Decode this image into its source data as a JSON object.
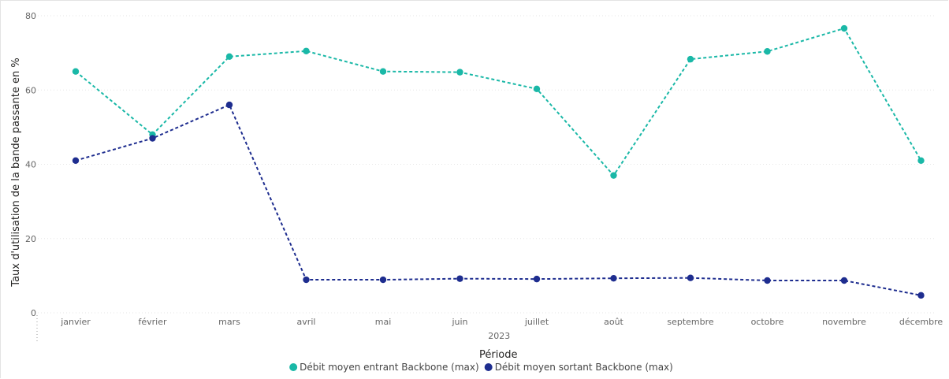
{
  "chart_data": {
    "type": "line",
    "categories": [
      "janvier",
      "février",
      "mars",
      "avril",
      "mai",
      "juin",
      "juillet",
      "août",
      "septembre",
      "octobre",
      "novembre",
      "décembre"
    ],
    "x_group_label": "2023",
    "xlabel": "Période",
    "ylabel": "Taux d'utilisation de la bande passante en %",
    "ylim": [
      0,
      80
    ],
    "yticks": [
      0,
      20,
      40,
      60,
      80
    ],
    "grid": true,
    "legend_position": "bottom",
    "series": [
      {
        "name": "Débit moyen entrant Backbone (max)",
        "color": "#1ab8a7",
        "values": [
          65,
          48,
          69,
          70.5,
          65,
          64.8,
          60.3,
          37,
          68.3,
          70.4,
          76.6,
          41
        ]
      },
      {
        "name": "Débit moyen sortant Backbone (max)",
        "color": "#1e2d8f",
        "values": [
          41,
          47,
          56,
          8.9,
          8.9,
          9.2,
          9.1,
          9.3,
          9.4,
          8.7,
          8.7,
          4.7
        ]
      }
    ]
  }
}
